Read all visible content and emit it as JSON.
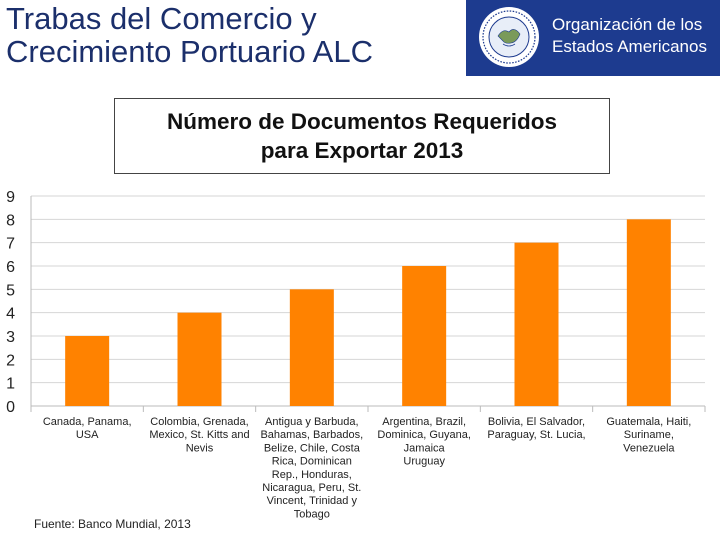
{
  "header": {
    "title_line1": "Trabas del Comercio y",
    "title_line2": "Crecimiento Portuario ALC",
    "org_line1": "Organización de los",
    "org_line2": "Estados Americanos",
    "logo_icon": "oas-seal-icon"
  },
  "colors": {
    "bar": "#ff8200",
    "title_text": "#1b2f6b",
    "org_band": "#1d3b8f",
    "grid": "#d6d6d6"
  },
  "chart_data": {
    "type": "bar",
    "title_lines": [
      "Número de Documentos Requeridos",
      "para Exportar 2013"
    ],
    "categories": [
      [
        "Canada, Panama,",
        "USA"
      ],
      [
        "Colombia, Grenada,",
        "Mexico, St. Kitts and",
        "Nevis"
      ],
      [
        "Antigua y Barbuda,",
        "Bahamas, Barbados,",
        "Belize, Chile, Costa",
        "Rica, Dominican",
        "Rep., Honduras,",
        "Nicaragua, Peru, St.",
        "Vincent, Trinidad y",
        "Tobago"
      ],
      [
        "Argentina, Brazil,",
        "Dominica, Guyana,",
        "Jamaica",
        "Uruguay"
      ],
      [
        "Bolivia, El Salvador,",
        "Paraguay, St. Lucia,"
      ],
      [
        "Guatemala, Haiti,",
        "Suriname,",
        "Venezuela"
      ]
    ],
    "values": [
      3,
      4,
      5,
      6,
      7,
      8
    ],
    "yticks": [
      "0",
      "1",
      "2",
      "3",
      "4",
      "5",
      "6",
      "7",
      "8",
      "9"
    ],
    "ylim": [
      0,
      9
    ],
    "grid": true
  },
  "footer": {
    "source": "Fuente: Banco Mundial, 2013"
  }
}
